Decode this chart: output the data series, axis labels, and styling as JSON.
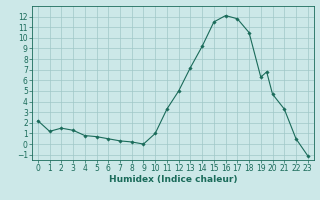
{
  "full_x": [
    0,
    1,
    2,
    3,
    4,
    5,
    6,
    7,
    8,
    9,
    10,
    11,
    12,
    13,
    14,
    15,
    16,
    17,
    18,
    19,
    19.5,
    20,
    21,
    22,
    23
  ],
  "full_y": [
    2.2,
    1.2,
    1.5,
    1.3,
    0.8,
    0.7,
    0.5,
    0.3,
    0.2,
    0.0,
    1.0,
    3.3,
    5.0,
    7.2,
    9.2,
    11.5,
    12.1,
    11.8,
    10.5,
    6.3,
    6.8,
    4.7,
    3.3,
    0.5,
    -1.1
  ],
  "xlim": [
    -0.5,
    23.5
  ],
  "ylim": [
    -1.5,
    13.0
  ],
  "yticks": [
    -1,
    0,
    1,
    2,
    3,
    4,
    5,
    6,
    7,
    8,
    9,
    10,
    11,
    12
  ],
  "xticks": [
    0,
    1,
    2,
    3,
    4,
    5,
    6,
    7,
    8,
    9,
    10,
    11,
    12,
    13,
    14,
    15,
    16,
    17,
    18,
    19,
    20,
    21,
    22,
    23
  ],
  "xlabel": "Humidex (Indice chaleur)",
  "line_color": "#1a6b5a",
  "marker": "D",
  "markersize": 1.8,
  "linewidth": 0.8,
  "bg_color": "#cce8e8",
  "grid_color": "#a0c8c8",
  "tick_fontsize": 5.5,
  "xlabel_fontsize": 6.5
}
